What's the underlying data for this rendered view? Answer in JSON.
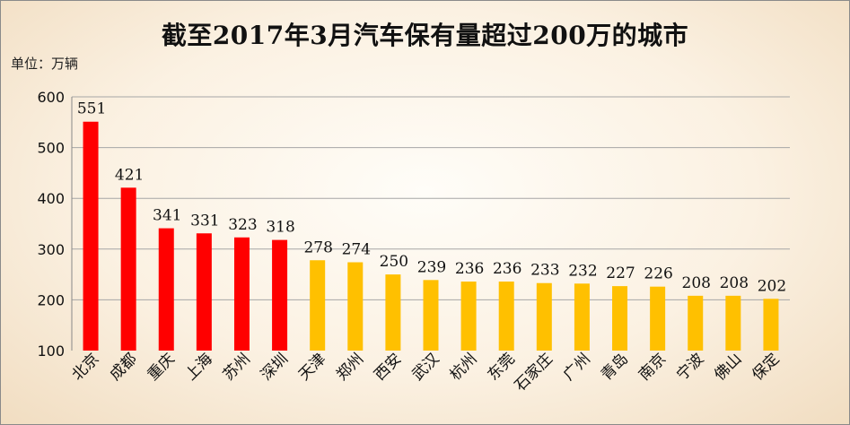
{
  "chart_data": {
    "type": "bar",
    "title": "截至2017年3月汽车保有量超过200万的城市",
    "unit_label": "单位：万辆",
    "categories": [
      "北京",
      "成都",
      "重庆",
      "上海",
      "苏州",
      "深圳",
      "天津",
      "郑州",
      "西安",
      "武汉",
      "杭州",
      "东莞",
      "石家庄",
      "广州",
      "青岛",
      "南京",
      "宁波",
      "佛山",
      "保定"
    ],
    "values": [
      551,
      421,
      341,
      331,
      323,
      318,
      278,
      274,
      250,
      239,
      236,
      236,
      233,
      232,
      227,
      226,
      208,
      208,
      202
    ],
    "ylim": [
      100,
      600
    ],
    "yticks": [
      100,
      200,
      300,
      400,
      500,
      600
    ],
    "grid": true,
    "colors": {
      "highlight": "#ff0000",
      "normal": "#ffc000",
      "grid": "#a6a6a6"
    },
    "highlight_count": 6
  }
}
